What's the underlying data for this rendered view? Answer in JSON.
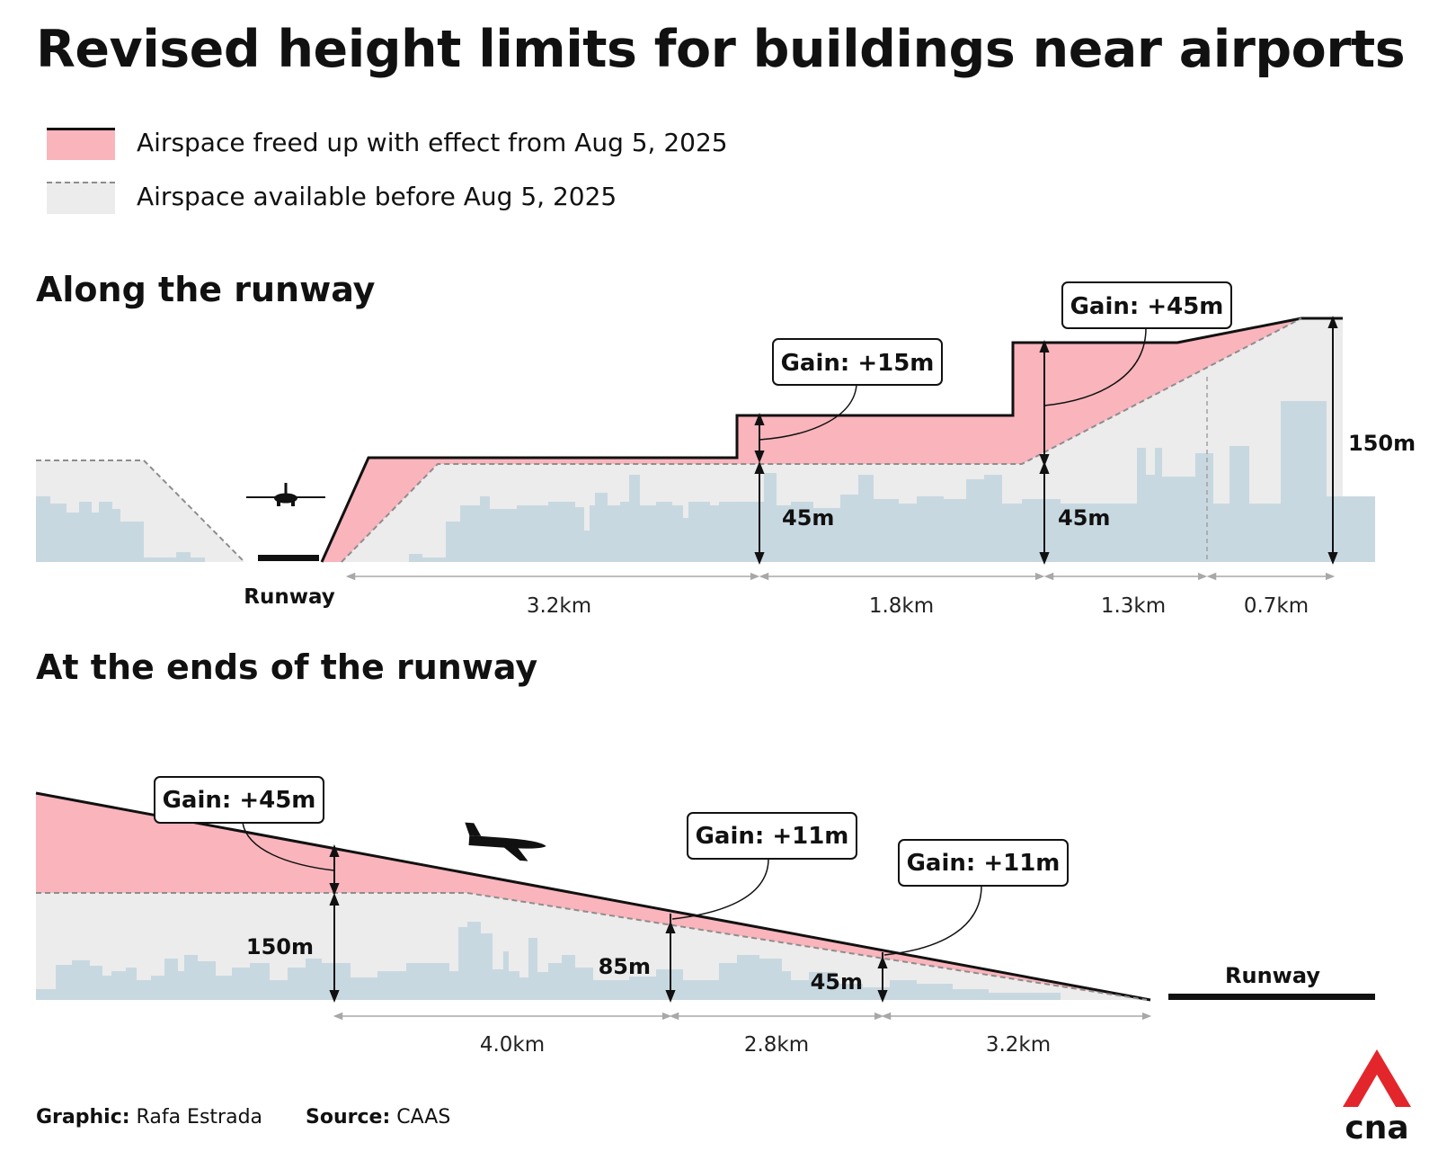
{
  "title": "Revised height limits for buildings near airports",
  "legend": {
    "freed": "Airspace freed up with effect from Aug 5, 2025",
    "before": "Airspace available before Aug 5, 2025"
  },
  "colors": {
    "freed_fill": "#f9b4bc",
    "before_fill": "#ececec",
    "buildings": "#c8d8e0",
    "line": "#111111",
    "dashed": "#8d8d8d",
    "logo_red": "#e3262b"
  },
  "along": {
    "heading": "Along the runway",
    "runway_label": "Runway",
    "gain1": "Gain: +15m",
    "gain2": "Gain: +45m",
    "h1": "45m",
    "h2": "45m",
    "h3": "150m",
    "d1": "3.2km",
    "d2": "1.8km",
    "d3": "1.3km",
    "d4": "0.7km"
  },
  "ends": {
    "heading": "At the ends of the runway",
    "runway_label": "Runway",
    "gain1": "Gain: +45m",
    "gain2": "Gain: +11m",
    "gain3": "Gain: +11m",
    "h1": "150m",
    "h2": "85m",
    "h3": "45m",
    "d1": "4.0km",
    "d2": "2.8km",
    "d3": "3.2km"
  },
  "footer": {
    "graphic_label": "Graphic:",
    "graphic_value": "Rafa Estrada",
    "source_label": "Source:",
    "source_value": "CAAS"
  },
  "logo": {
    "text": "cna",
    "icon": "cna-logo-icon"
  }
}
